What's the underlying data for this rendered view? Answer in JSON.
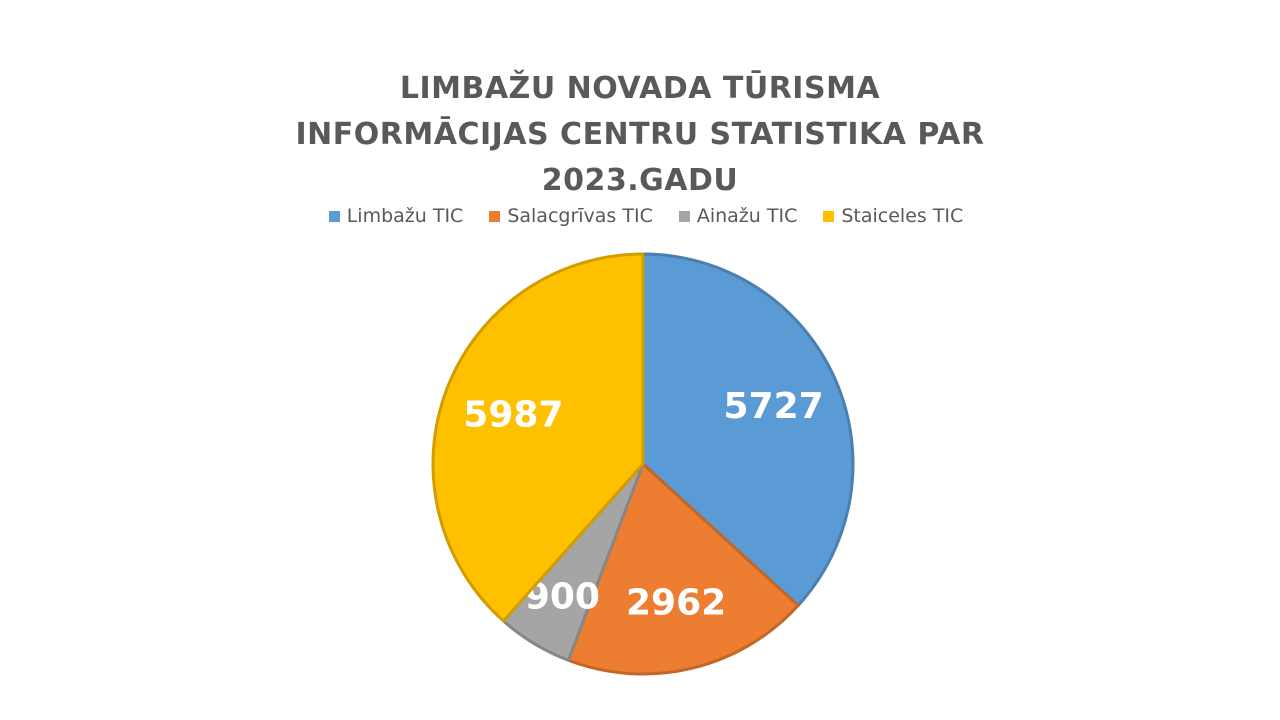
{
  "chart_data": {
    "type": "pie",
    "title": "LIMBAŽU NOVADA TŪRISMA INFORMĀCIJAS CENTRU STATISTIKA PAR 2023.GADU",
    "legend_position": "top",
    "slices": [
      {
        "name": "Limbažu TIC",
        "value": 5727,
        "color": "#5B9BD5"
      },
      {
        "name": "Salacgrīvas TIC",
        "value": 2962,
        "color": "#ED7D31"
      },
      {
        "name": "Ainažu TIC",
        "value": 900,
        "color": "#A5A5A5"
      },
      {
        "name": "Staiceles TIC",
        "value": 5987,
        "color": "#FFC000"
      }
    ]
  }
}
